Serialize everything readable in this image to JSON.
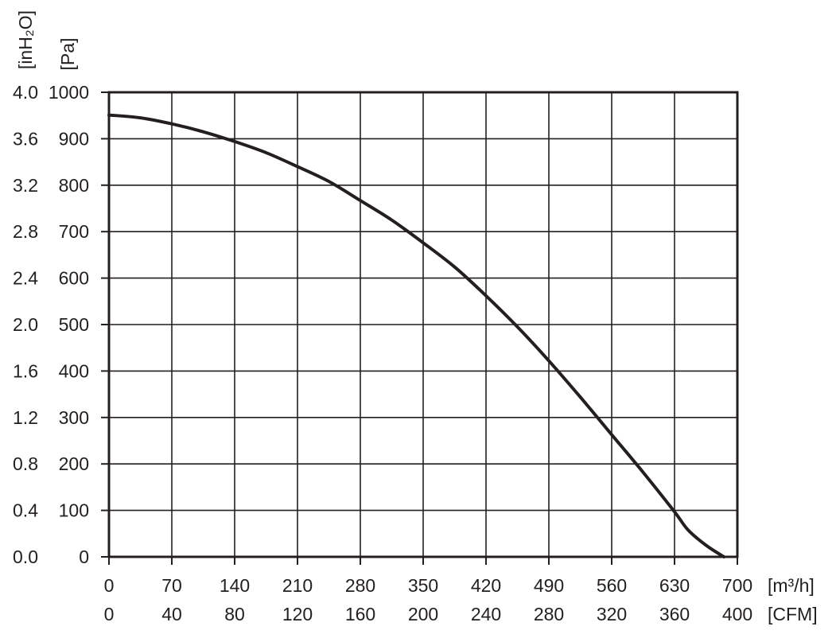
{
  "chart_data": {
    "type": "line",
    "title": "",
    "x_primary": {
      "unit": "[m³/h]",
      "ticks": [
        "0",
        "70",
        "140",
        "210",
        "280",
        "350",
        "420",
        "490",
        "560",
        "630",
        "700"
      ],
      "range": [
        0,
        700
      ]
    },
    "x_secondary": {
      "unit": "[CFM]",
      "ticks": [
        "0",
        "40",
        "80",
        "120",
        "160",
        "200",
        "240",
        "280",
        "320",
        "360",
        "400"
      ]
    },
    "y_primary": {
      "unit": "[Pa]",
      "ticks": [
        "0",
        "100",
        "200",
        "300",
        "400",
        "500",
        "600",
        "700",
        "800",
        "900",
        "1000"
      ],
      "range": [
        0,
        1000
      ]
    },
    "y_secondary": {
      "unit": "[inH₂O]",
      "ticks": [
        "0.0",
        "0.4",
        "0.8",
        "1.2",
        "1.6",
        "2.0",
        "2.4",
        "2.8",
        "3.2",
        "3.6",
        "4.0"
      ]
    },
    "grid": true,
    "series": [
      {
        "x": [
          0,
          35,
          70,
          105,
          140,
          175,
          210,
          245,
          280,
          315,
          350,
          385,
          420,
          455,
          490,
          525,
          560,
          595,
          630,
          645,
          665,
          685
        ],
        "y": [
          951,
          945,
          932,
          915,
          894,
          870,
          840,
          808,
          767,
          725,
          676,
          624,
          562,
          495,
          422,
          344,
          263,
          182,
          97,
          58,
          25,
          0
        ]
      }
    ],
    "colors": {
      "line": "#231f20",
      "grid": "#231f20",
      "text": "#231f20"
    }
  }
}
